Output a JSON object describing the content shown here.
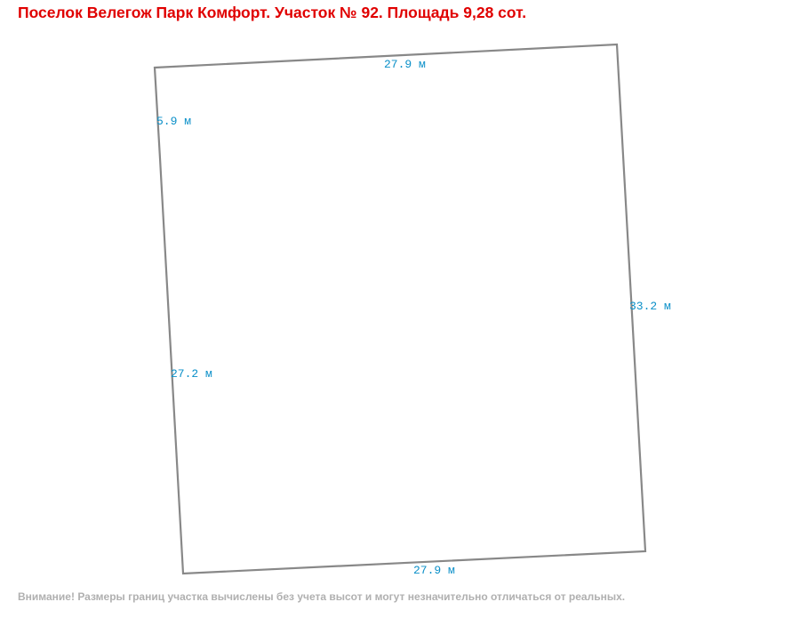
{
  "header": {
    "title": "Поселок Велегож Парк Комфорт. Участок № 92. Площадь 9,28 сот."
  },
  "edges": [
    {
      "label": "27.9 м"
    },
    {
      "label": "33.2 м"
    },
    {
      "label": "27.9 м"
    },
    {
      "label": "27.2 м"
    },
    {
      "label": "5.9 м"
    }
  ],
  "footer": {
    "note": "Внимание! Размеры границ участка вычислены без учета высот и могут незначительно отличаться от реальных."
  }
}
